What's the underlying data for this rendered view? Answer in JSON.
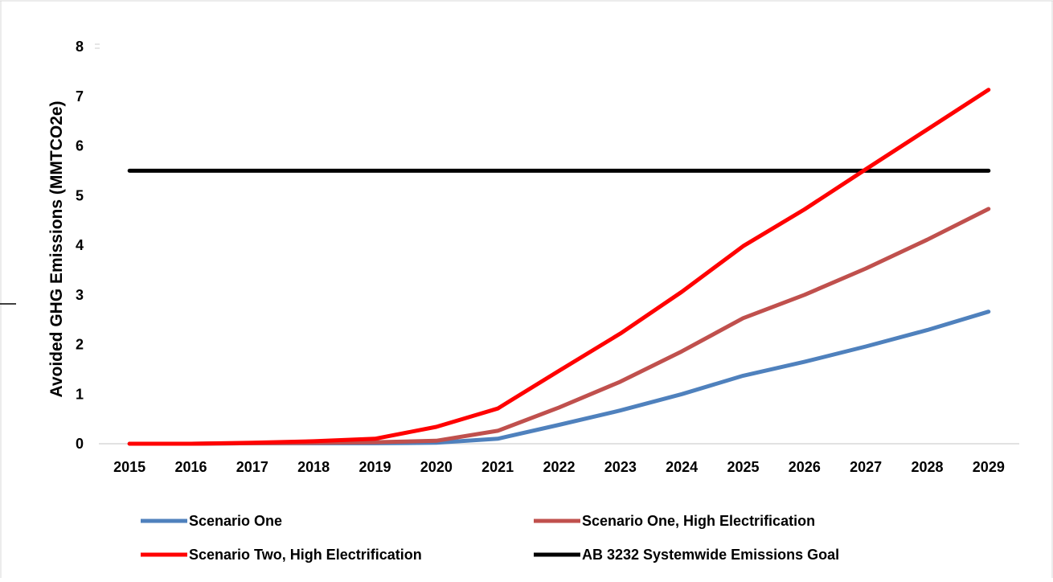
{
  "chart_data": {
    "type": "line",
    "title": "",
    "xlabel": "",
    "ylabel": "Avoided GHG Emissions (MMTCO2e)",
    "ylim": [
      0,
      8
    ],
    "yticks": [
      0,
      1,
      2,
      3,
      4,
      5,
      6,
      7,
      8
    ],
    "categories": [
      "2015",
      "2016",
      "2017",
      "2018",
      "2019",
      "2020",
      "2021",
      "2022",
      "2023",
      "2024",
      "2025",
      "2026",
      "2027",
      "2028",
      "2029"
    ],
    "grid": false,
    "legend_position": "bottom",
    "series": [
      {
        "name": "Scenario One",
        "color": "#4f81bd",
        "values": [
          0,
          0,
          0.01,
          0.01,
          0.01,
          0.02,
          0.1,
          0.38,
          0.67,
          1.0,
          1.37,
          1.65,
          1.96,
          2.29,
          2.66
        ]
      },
      {
        "name": "Scenario One, High Electrification",
        "color": "#c0504d",
        "values": [
          0,
          0,
          0.01,
          0.02,
          0.03,
          0.06,
          0.26,
          0.73,
          1.25,
          1.86,
          2.53,
          3.0,
          3.53,
          4.11,
          4.73
        ]
      },
      {
        "name": "Scenario Two, High Electrification",
        "color": "#ff0000",
        "values": [
          0,
          0,
          0.02,
          0.05,
          0.1,
          0.34,
          0.71,
          1.47,
          2.22,
          3.06,
          3.98,
          4.72,
          5.53,
          6.33,
          7.13
        ]
      },
      {
        "name": "AB 3232 Systemwide Emissions Goal",
        "color": "#000000",
        "values": [
          5.5,
          5.5,
          5.5,
          5.5,
          5.5,
          5.5,
          5.5,
          5.5,
          5.5,
          5.5,
          5.5,
          5.5,
          5.5,
          5.5,
          5.5
        ]
      }
    ]
  }
}
